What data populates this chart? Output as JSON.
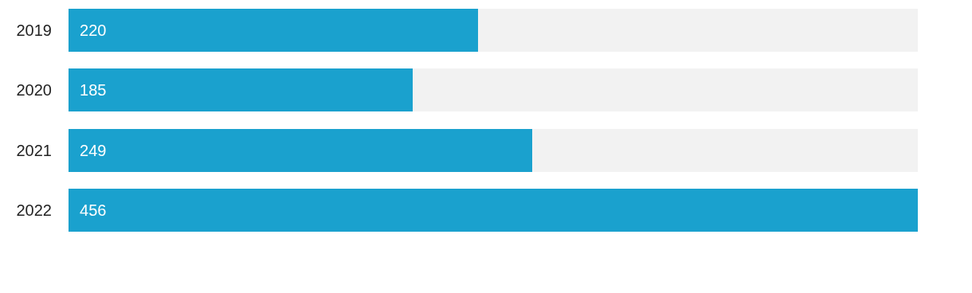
{
  "chart_data": {
    "type": "bar",
    "orientation": "horizontal",
    "stacked": true,
    "categories": [
      "2019",
      "2020",
      "2021",
      "2022"
    ],
    "series": [
      {
        "color": "#1aa1ce",
        "values": [
          220,
          185,
          249,
          456
        ],
        "value_labels": [
          "220",
          "185",
          "249",
          "456"
        ]
      },
      {
        "color": "#f2f2f2",
        "values": [
          236,
          271,
          207,
          0
        ]
      }
    ]
  }
}
